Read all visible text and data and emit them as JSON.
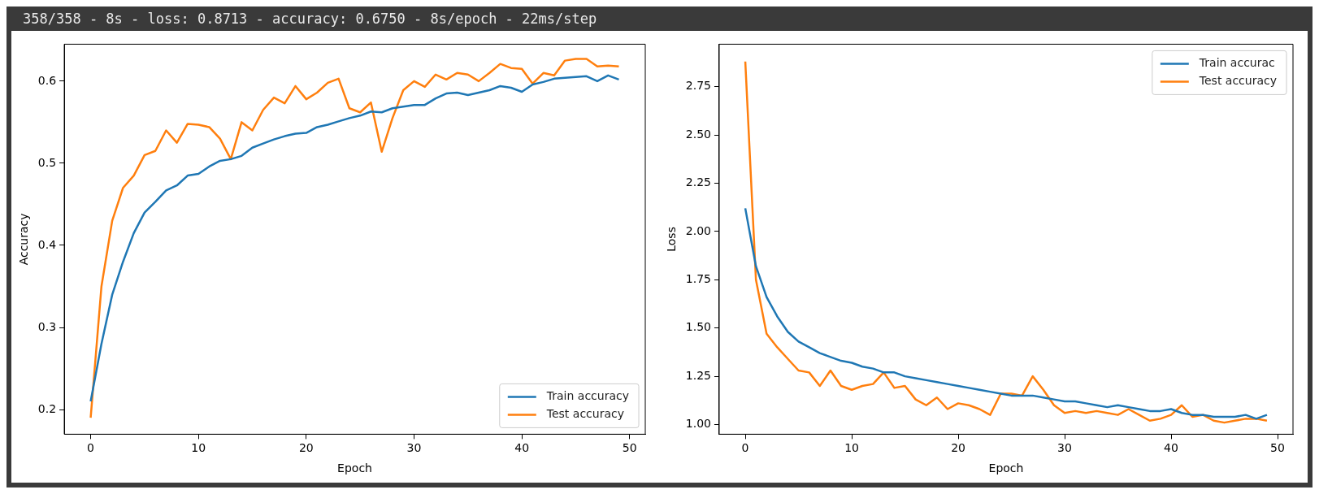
{
  "chart_data": [
    {
      "type": "line",
      "annotations": [
        "358/358 - 8s - loss: 0.8713 - accuracy: 0.6750 - 8s/epoch - 22ms/step"
      ],
      "xlabel": "Epoch",
      "ylabel": "Accuracy",
      "xlim": [
        -2.45,
        51.45
      ],
      "xticks": [
        0,
        10,
        20,
        30,
        40,
        50
      ],
      "ylim": [
        0.17,
        0.645
      ],
      "yticks": [
        0.2,
        0.3,
        0.4,
        0.5,
        0.6
      ],
      "grid": false,
      "legend": "bottom right",
      "x": [
        0,
        1,
        2,
        3,
        4,
        5,
        6,
        7,
        8,
        9,
        10,
        11,
        12,
        13,
        14,
        15,
        16,
        17,
        18,
        19,
        20,
        21,
        22,
        23,
        24,
        25,
        26,
        27,
        28,
        29,
        30,
        31,
        32,
        33,
        34,
        35,
        36,
        37,
        38,
        39,
        40,
        41,
        42,
        43,
        44,
        45,
        46,
        47,
        48,
        49
      ],
      "series": [
        {
          "name": "Train accuracy",
          "color": "#1f77b4",
          "values": [
            0.21,
            0.28,
            0.34,
            0.38,
            0.415,
            0.44,
            0.453,
            0.467,
            0.473,
            0.485,
            0.487,
            0.496,
            0.503,
            0.505,
            0.509,
            0.519,
            0.524,
            0.529,
            0.533,
            0.536,
            0.537,
            0.544,
            0.547,
            0.551,
            0.555,
            0.558,
            0.563,
            0.562,
            0.567,
            0.569,
            0.571,
            0.571,
            0.579,
            0.585,
            0.586,
            0.583,
            0.586,
            0.589,
            0.594,
            0.592,
            0.587,
            0.596,
            0.599,
            0.603,
            0.604,
            0.605,
            0.606,
            0.6,
            0.607,
            0.602
          ]
        },
        {
          "name": "Test accuracy",
          "color": "#ff7f0e",
          "values": [
            0.19,
            0.35,
            0.43,
            0.47,
            0.485,
            0.51,
            0.515,
            0.54,
            0.525,
            0.548,
            0.547,
            0.544,
            0.53,
            0.505,
            0.55,
            0.54,
            0.565,
            0.58,
            0.573,
            0.594,
            0.578,
            0.586,
            0.598,
            0.603,
            0.567,
            0.562,
            0.574,
            0.514,
            0.555,
            0.589,
            0.6,
            0.593,
            0.608,
            0.602,
            0.61,
            0.608,
            0.6,
            0.61,
            0.621,
            0.616,
            0.615,
            0.597,
            0.61,
            0.607,
            0.625,
            0.627,
            0.627,
            0.618,
            0.619,
            0.618
          ]
        }
      ]
    },
    {
      "type": "line",
      "xlabel": "Epoch",
      "ylabel": "Loss",
      "xlim": [
        -2.45,
        51.45
      ],
      "xticks": [
        0,
        10,
        20,
        30,
        40,
        50
      ],
      "ylim": [
        0.95,
        2.97
      ],
      "yticks": [
        {
          "value": 1,
          "label": "1.00"
        },
        {
          "value": 1.25,
          "label": "1.25"
        },
        {
          "value": 1.5,
          "label": "1.50"
        },
        {
          "value": 1.75,
          "label": "1.75"
        },
        {
          "value": 2,
          "label": "2.00"
        },
        {
          "value": 2.25,
          "label": "2.25"
        },
        {
          "value": 2.5,
          "label": "2.50"
        },
        {
          "value": 2.75,
          "label": "2.75"
        }
      ],
      "grid": false,
      "legend": "top right",
      "x": [
        0,
        1,
        2,
        3,
        4,
        5,
        6,
        7,
        8,
        9,
        10,
        11,
        12,
        13,
        14,
        15,
        16,
        17,
        18,
        19,
        20,
        21,
        22,
        23,
        24,
        25,
        26,
        27,
        28,
        29,
        30,
        31,
        32,
        33,
        34,
        35,
        36,
        37,
        38,
        39,
        40,
        41,
        42,
        43,
        44,
        45,
        46,
        47,
        48,
        49
      ],
      "series": [
        {
          "name": "Train accurac",
          "color": "#1f77b4",
          "values": [
            2.12,
            1.82,
            1.66,
            1.56,
            1.48,
            1.43,
            1.4,
            1.37,
            1.35,
            1.33,
            1.32,
            1.3,
            1.29,
            1.27,
            1.27,
            1.25,
            1.24,
            1.23,
            1.22,
            1.21,
            1.2,
            1.19,
            1.18,
            1.17,
            1.16,
            1.15,
            1.15,
            1.15,
            1.14,
            1.13,
            1.12,
            1.12,
            1.11,
            1.1,
            1.09,
            1.1,
            1.09,
            1.08,
            1.07,
            1.07,
            1.08,
            1.06,
            1.05,
            1.05,
            1.04,
            1.04,
            1.04,
            1.05,
            1.03,
            1.05
          ]
        },
        {
          "name": "Test accuracy",
          "color": "#ff7f0e",
          "values": [
            2.88,
            1.75,
            1.47,
            1.4,
            1.34,
            1.28,
            1.27,
            1.2,
            1.28,
            1.2,
            1.18,
            1.2,
            1.21,
            1.27,
            1.19,
            1.2,
            1.13,
            1.1,
            1.14,
            1.08,
            1.11,
            1.1,
            1.08,
            1.05,
            1.16,
            1.16,
            1.15,
            1.25,
            1.18,
            1.1,
            1.06,
            1.07,
            1.06,
            1.07,
            1.06,
            1.05,
            1.08,
            1.05,
            1.02,
            1.03,
            1.05,
            1.1,
            1.04,
            1.05,
            1.02,
            1.01,
            1.02,
            1.03,
            1.03,
            1.02
          ]
        }
      ]
    }
  ]
}
